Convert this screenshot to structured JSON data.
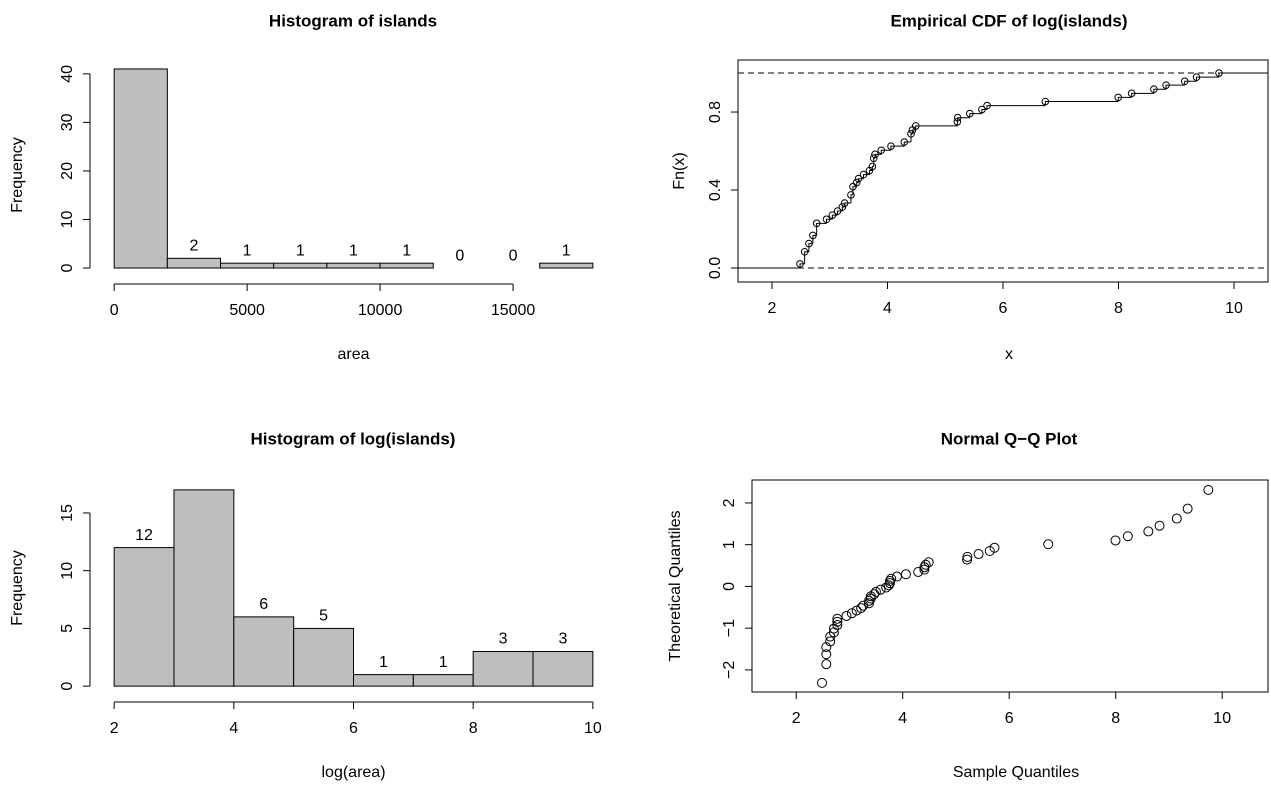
{
  "chart_data": [
    {
      "type": "histogram",
      "title": "Histogram of islands",
      "xlabel": "area",
      "ylabel": "Frequency",
      "bins": [
        0,
        2000,
        4000,
        6000,
        8000,
        10000,
        12000,
        14000,
        16000,
        18000
      ],
      "values": [
        41,
        2,
        1,
        1,
        1,
        1,
        0,
        0,
        1
      ],
      "color": "#bebebe",
      "xlim": [
        -720,
        18720
      ],
      "ylim": [
        -1.64,
        42.64
      ],
      "xticks": [
        0,
        5000,
        10000,
        15000
      ],
      "yticks": [
        0,
        10,
        20,
        30,
        40
      ]
    },
    {
      "type": "ecdf",
      "title": "Empirical CDF of log(islands)",
      "xlabel": "x",
      "ylabel": "Fn(x)",
      "x": [
        2.485,
        2.565,
        2.639,
        2.708,
        2.773,
        2.944,
        3.045,
        3.135,
        3.219,
        3.258,
        3.367,
        3.401,
        3.466,
        3.497,
        3.584,
        3.689,
        3.738,
        3.761,
        3.784,
        3.892,
        4.06,
        4.29,
        4.407,
        4.431,
        4.489,
        5.209,
        5.215,
        5.425,
        5.635,
        5.724,
        6.733,
        7.996,
        8.228,
        8.613,
        8.824,
        9.147,
        9.351,
        9.74
      ],
      "values": [
        0.021,
        0.083,
        0.125,
        0.167,
        0.229,
        0.25,
        0.271,
        0.292,
        0.313,
        0.333,
        0.375,
        0.417,
        0.438,
        0.458,
        0.479,
        0.5,
        0.521,
        0.563,
        0.583,
        0.604,
        0.625,
        0.646,
        0.688,
        0.708,
        0.729,
        0.75,
        0.771,
        0.792,
        0.813,
        0.833,
        0.854,
        0.875,
        0.896,
        0.917,
        0.938,
        0.958,
        0.979,
        1
      ],
      "hlines": [
        0,
        1
      ],
      "xlim": [
        1.411,
        10.589
      ],
      "ylim": [
        -0.072,
        1.067
      ],
      "xticks": [
        2,
        4,
        6,
        8,
        10
      ],
      "yticks": [
        {
          "value": 0,
          "label": "0.0"
        },
        0.4,
        0.8
      ]
    },
    {
      "type": "histogram",
      "title": "Histogram of log(islands)",
      "xlabel": "log(area)",
      "ylabel": "Frequency",
      "bins": [
        2,
        3,
        4,
        5,
        6,
        7,
        8,
        9,
        10
      ],
      "values": [
        12,
        17,
        6,
        5,
        1,
        1,
        3,
        3
      ],
      "color": "#bebebe",
      "xlim": [
        1.68,
        10.32
      ],
      "ylim": [
        -0.68,
        17.68
      ],
      "xticks": [
        2,
        4,
        6,
        8,
        10
      ],
      "yticks": [
        0,
        5,
        10,
        15
      ]
    },
    {
      "type": "scatter",
      "title": "Normal Q−Q Plot",
      "xlabel": "Sample Quantiles",
      "ylabel": "Theoretical Quantiles",
      "x": [
        2.485,
        2.565,
        2.565,
        2.565,
        2.639,
        2.639,
        2.708,
        2.708,
        2.773,
        2.773,
        2.773,
        2.944,
        3.045,
        3.135,
        3.219,
        3.258,
        3.367,
        3.367,
        3.401,
        3.401,
        3.466,
        3.497,
        3.584,
        3.689,
        3.738,
        3.761,
        3.761,
        3.784,
        3.892,
        4.06,
        4.29,
        4.407,
        4.407,
        4.431,
        4.489,
        5.209,
        5.215,
        5.425,
        5.635,
        5.724,
        6.733,
        7.996,
        8.228,
        8.613,
        8.824,
        9.147,
        9.351,
        9.74
      ],
      "values": [
        -2.311,
        -1.863,
        -1.626,
        -1.455,
        -1.318,
        -1.202,
        -1.101,
        -1.01,
        -0.926,
        -0.849,
        -0.776,
        -0.708,
        -0.643,
        -0.579,
        -0.519,
        -0.46,
        -0.402,
        -0.346,
        -0.291,
        -0.237,
        -0.184,
        -0.131,
        -0.078,
        -0.026,
        0.026,
        0.078,
        0.131,
        0.184,
        0.237,
        0.291,
        0.346,
        0.402,
        0.46,
        0.519,
        0.579,
        0.643,
        0.708,
        0.776,
        0.849,
        0.926,
        1.01,
        1.101,
        1.202,
        1.318,
        1.455,
        1.626,
        1.863,
        2.311
      ],
      "xlim": [
        1.17,
        10.86
      ],
      "ylim": [
        -2.53,
        2.55
      ],
      "xticks": [
        2,
        4,
        6,
        8,
        10
      ],
      "yticks": [
        {
          "value": -2,
          "label": "−2"
        },
        {
          "value": -1,
          "label": "−1"
        },
        0,
        1,
        2
      ]
    }
  ]
}
